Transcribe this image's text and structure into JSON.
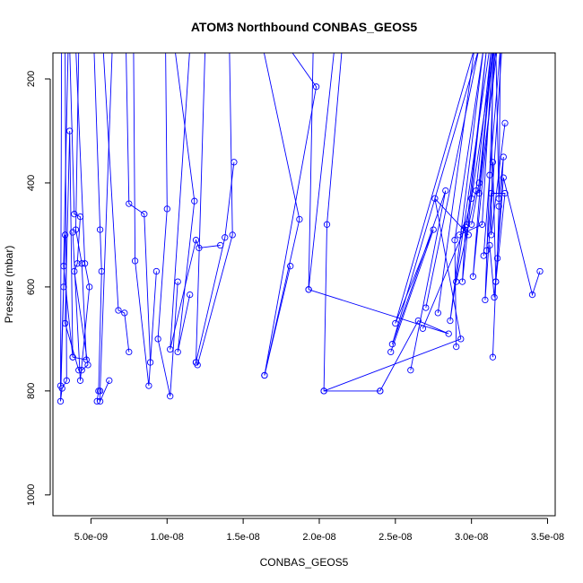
{
  "chart_data": {
    "type": "line",
    "title": "ATOM3 Northbound CONBAS_GEOS5",
    "xlabel": "CONBAS_GEOS5",
    "ylabel": "Pressure (mbar)",
    "xlim": [
      2.5e-09,
      3.55e-08
    ],
    "ylim": [
      1040,
      150
    ],
    "y_axis_reversed": true,
    "grid": false,
    "x_ticks": [
      {
        "value": 5e-09,
        "label": "5.0e-09"
      },
      {
        "value": 1e-08,
        "label": "1.0e-08"
      },
      {
        "value": 1.5e-08,
        "label": "1.5e-08"
      },
      {
        "value": 2e-08,
        "label": "2.0e-08"
      },
      {
        "value": 2.5e-08,
        "label": "2.5e-08"
      },
      {
        "value": 3e-08,
        "label": "3.0e-08"
      },
      {
        "value": 3.5e-08,
        "label": "3.5e-08"
      }
    ],
    "y_ticks": [
      {
        "value": 200,
        "label": "200"
      },
      {
        "value": 400,
        "label": "400"
      },
      {
        "value": 600,
        "label": "600"
      },
      {
        "value": 800,
        "label": "800"
      },
      {
        "value": 1000,
        "label": "1000"
      }
    ],
    "series_color": "#0000ff",
    "marker": "open-circle",
    "series": [
      {
        "x": [
          3.1e-09,
          3e-09,
          3.2e-09,
          3.3e-09,
          3e-09,
          3.1e-09,
          3.4e-09,
          3.3e-09
        ],
        "y": [
          -200,
          790,
          600,
          500,
          820,
          795,
          780,
          140
        ]
      },
      {
        "x": [
          3.5e-09,
          3.2e-09,
          3.8e-09,
          3.6e-09,
          3.3e-09,
          4.2e-09
        ],
        "y": [
          140,
          560,
          735,
          300,
          670,
          760
        ]
      },
      {
        "x": [
          3.6e-09,
          3.9e-09,
          4.3e-09,
          4.1e-09,
          3.9e-09,
          4.8e-09,
          4.4e-09
        ],
        "y": [
          140,
          460,
          465,
          555,
          570,
          750,
          760
        ]
      },
      {
        "x": [
          4.2e-09,
          4e-09,
          4.4e-09,
          4.7e-09,
          3.8e-09
        ],
        "y": [
          140,
          490,
          555,
          740,
          735
        ]
      },
      {
        "x": [
          4e-09,
          4.6e-09,
          4.9e-09,
          4.3e-09,
          3.8e-09
        ],
        "y": [
          140,
          555,
          600,
          780,
          495
        ]
      },
      {
        "x": [
          5.2e-09,
          5.6e-09,
          5.7e-09,
          5.5e-09,
          5.4e-09
        ],
        "y": [
          140,
          490,
          570,
          800,
          820
        ]
      },
      {
        "x": [
          6.4e-09,
          5.6e-09,
          5.6e-09,
          6.2e-09
        ],
        "y": [
          140,
          800,
          820,
          780
        ]
      },
      {
        "x": [
          5.8e-09,
          6.8e-09,
          7.2e-09,
          7.5e-09
        ],
        "y": [
          140,
          645,
          650,
          725
        ]
      },
      {
        "x": [
          7.3e-09,
          7.5e-09,
          8.5e-09,
          8.9e-09
        ],
        "y": [
          140,
          440,
          460,
          745
        ]
      },
      {
        "x": [
          7.8e-09,
          7.9e-09,
          8.8e-09,
          9.3e-09
        ],
        "y": [
          140,
          550,
          790,
          570
        ]
      },
      {
        "x": [
          9.9e-09,
          1e-08,
          9.4e-09,
          1.02e-08,
          1.07e-08
        ],
        "y": [
          140,
          450,
          700,
          810,
          590
        ]
      },
      {
        "x": [
          1.05e-08,
          1.18e-08,
          1.07e-08,
          1.15e-08
        ],
        "y": [
          140,
          435,
          725,
          615
        ]
      },
      {
        "x": [
          1.15e-08,
          1.02e-08,
          1.19e-08,
          1.21e-08,
          1.35e-08
        ],
        "y": [
          140,
          720,
          510,
          525,
          520
        ]
      },
      {
        "x": [
          1.25e-08,
          1.19e-08,
          1.38e-08,
          1.44e-08
        ],
        "y": [
          140,
          745,
          505,
          360
        ]
      },
      {
        "x": [
          1.41e-08,
          1.43e-08,
          1.2e-08,
          1.19e-08
        ],
        "y": [
          140,
          500,
          750,
          745
        ]
      },
      {
        "x": [
          1.63e-08,
          1.87e-08,
          1.64e-08
        ],
        "y": [
          140,
          470,
          770
        ]
      },
      {
        "x": [
          1.8e-08,
          1.98e-08,
          1.64e-08,
          1.81e-08
        ],
        "y": [
          140,
          215,
          770,
          560
        ]
      },
      {
        "x": [
          1.96e-08,
          1.93e-08,
          2.1e-08
        ],
        "y": [
          140,
          605,
          140
        ]
      },
      {
        "x": [
          2.15e-08,
          2.05e-08,
          2.03e-08,
          2.4e-08
        ],
        "y": [
          140,
          480,
          800,
          800
        ]
      },
      {
        "x": [
          1.93e-08,
          2.85e-08,
          2.65e-08,
          2.4e-08
        ],
        "y": [
          605,
          690,
          665,
          800
        ]
      },
      {
        "x": [
          2.03e-08,
          2.93e-08,
          2.76e-08,
          2.98e-08
        ],
        "y": [
          800,
          700,
          430,
          500
        ]
      },
      {
        "x": [
          2.6e-08,
          2.83e-08,
          2.48e-08,
          3.05e-08,
          2.7e-08
        ],
        "y": [
          760,
          415,
          710,
          140,
          640
        ]
      },
      {
        "x": [
          2.47e-08,
          2.75e-08,
          2.5e-08,
          3.02e-08,
          2.78e-08
        ],
        "y": [
          725,
          490,
          670,
          140,
          650
        ]
      },
      {
        "x": [
          2.9e-08,
          2.89e-08,
          3.08e-08,
          2.86e-08,
          3.12e-08
        ],
        "y": [
          715,
          510,
          140,
          665,
          140
        ]
      },
      {
        "x": [
          2.68e-08,
          2.96e-08,
          2.94e-08,
          3.1e-08,
          2.97e-08
        ],
        "y": [
          680,
          485,
          590,
          140,
          480
        ]
      },
      {
        "x": [
          2.9e-08,
          3.03e-08,
          3.13e-08,
          3.01e-08,
          3.16e-08
        ],
        "y": [
          590,
          415,
          140,
          580,
          140
        ]
      },
      {
        "x": [
          2.92e-08,
          3.07e-08,
          3.14e-08,
          3.05e-08,
          3.17e-08
        ],
        "y": [
          500,
          480,
          140,
          420,
          140
        ]
      },
      {
        "x": [
          2.95e-08,
          3e-08,
          3.15e-08,
          3.09e-08,
          3.2e-08
        ],
        "y": [
          490,
          430,
          140,
          625,
          140
        ]
      },
      {
        "x": [
          3e-08,
          3.05e-08,
          3.14e-08,
          3.13e-08,
          3.22e-08
        ],
        "y": [
          480,
          400,
          140,
          500,
          285
        ]
      },
      {
        "x": [
          3.08e-08,
          3.12e-08,
          3.19e-08,
          3.18e-08,
          3.17e-08
        ],
        "y": [
          540,
          385,
          140,
          445,
          545
        ]
      },
      {
        "x": [
          3.1e-08,
          3.13e-08,
          3.22e-08,
          3.16e-08,
          3.14e-08
        ],
        "y": [
          530,
          420,
          420,
          590,
          735
        ]
      },
      {
        "x": [
          3.12e-08,
          3.15e-08,
          3.21e-08,
          3.4e-08,
          3.45e-08
        ],
        "y": [
          520,
          620,
          390,
          615,
          570
        ]
      },
      {
        "x": [
          3.14e-08,
          3.16e-08,
          3.21e-08,
          3.18e-08,
          3.16e-08
        ],
        "y": [
          360,
          590,
          350,
          430,
          140
        ]
      }
    ]
  }
}
